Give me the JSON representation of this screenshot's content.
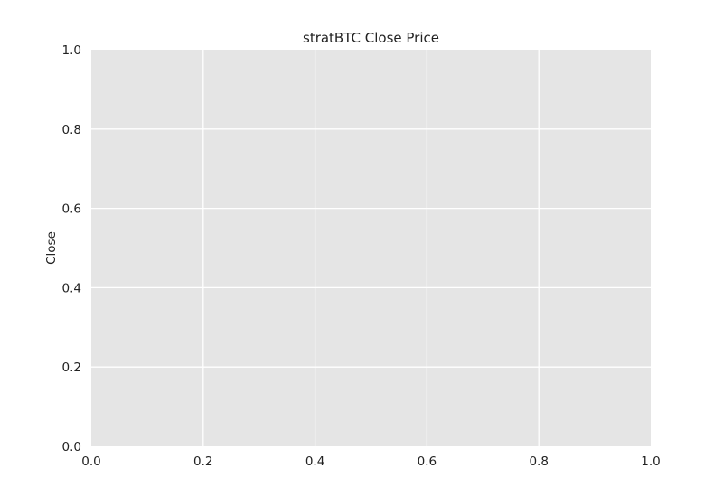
{
  "chart_data": {
    "type": "line",
    "title": "stratBTC Close Price",
    "xlabel": "",
    "ylabel": "Close",
    "xlim": [
      0.0,
      1.0
    ],
    "ylim": [
      0.0,
      1.0
    ],
    "x_ticks": [
      "0.0",
      "0.2",
      "0.4",
      "0.6",
      "0.8",
      "1.0"
    ],
    "y_ticks": [
      "0.0",
      "0.2",
      "0.4",
      "0.6",
      "0.8",
      "1.0"
    ],
    "series": [],
    "grid": true,
    "style": {
      "plot_background": "#e5e5e5",
      "grid_color": "#ffffff"
    }
  }
}
